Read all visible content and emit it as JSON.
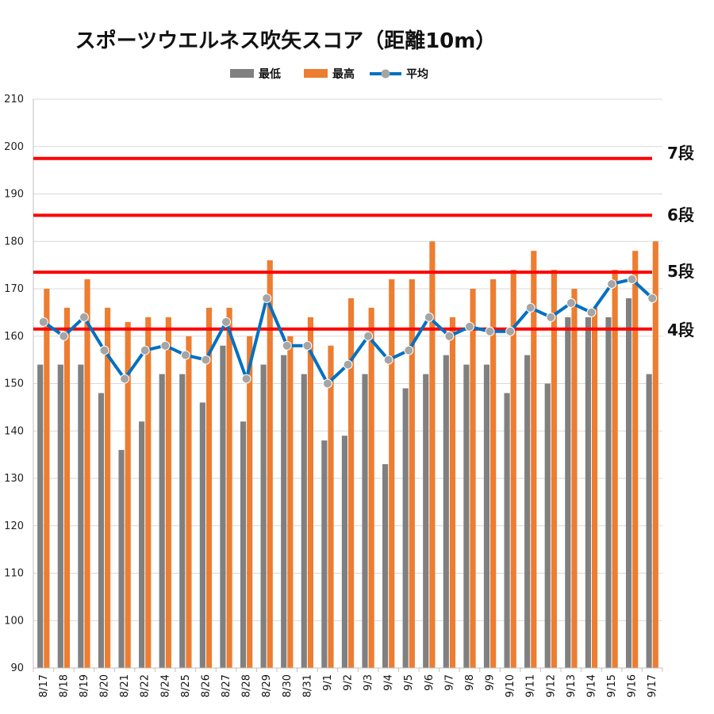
{
  "chart_data": {
    "type": "bar",
    "title": "スポーツウエルネス吹矢スコア（距離10m）",
    "categories": [
      "8/17",
      "8/18",
      "8/19",
      "8/20",
      "8/21",
      "8/22",
      "8/24",
      "8/25",
      "8/26",
      "8/27",
      "8/28",
      "8/29",
      "8/30",
      "8/31",
      "9/1",
      "9/2",
      "9/3",
      "9/4",
      "9/5",
      "9/6",
      "9/7",
      "9/8",
      "9/9",
      "9/10",
      "9/11",
      "9/12",
      "9/13",
      "9/14",
      "9/15",
      "9/16",
      "9/17"
    ],
    "series": [
      {
        "name": "最低",
        "kind": "bar",
        "color": "#808080",
        "values": [
          154,
          154,
          154,
          148,
          136,
          142,
          152,
          152,
          146,
          158,
          142,
          154,
          156,
          152,
          138,
          139,
          152,
          133,
          149,
          152,
          156,
          154,
          154,
          148,
          156,
          150,
          164,
          164,
          164,
          168,
          152
        ]
      },
      {
        "name": "最高",
        "kind": "bar",
        "color": "#ED7D31",
        "values": [
          170,
          166,
          172,
          166,
          163,
          164,
          164,
          160,
          166,
          166,
          160,
          176,
          160,
          164,
          158,
          168,
          166,
          172,
          172,
          180,
          164,
          170,
          172,
          174,
          178,
          174,
          170,
          166,
          174,
          178,
          180
        ]
      },
      {
        "name": "平均",
        "kind": "line",
        "color": "#0070C0",
        "marker_color": "#A5A5A5",
        "values": [
          163,
          160,
          164,
          157,
          151,
          157,
          158,
          156,
          155,
          163,
          151,
          168,
          158,
          158,
          150,
          154,
          160,
          155,
          157,
          164,
          160,
          162,
          161,
          161,
          166,
          164,
          167,
          165,
          171,
          172,
          168
        ]
      }
    ],
    "ylim": [
      90,
      210
    ],
    "yticks": [
      90,
      100,
      110,
      120,
      130,
      140,
      150,
      160,
      170,
      180,
      190,
      200,
      210
    ],
    "grid": true,
    "legend_position": "top",
    "reference_lines": [
      {
        "label": "7段",
        "value": 197.5,
        "color": "#FF0000"
      },
      {
        "label": "6段",
        "value": 185.5,
        "color": "#FF0000"
      },
      {
        "label": "5段",
        "value": 173.5,
        "color": "#FF0000"
      },
      {
        "label": "4段",
        "value": 161.5,
        "color": "#FF0000"
      }
    ]
  }
}
